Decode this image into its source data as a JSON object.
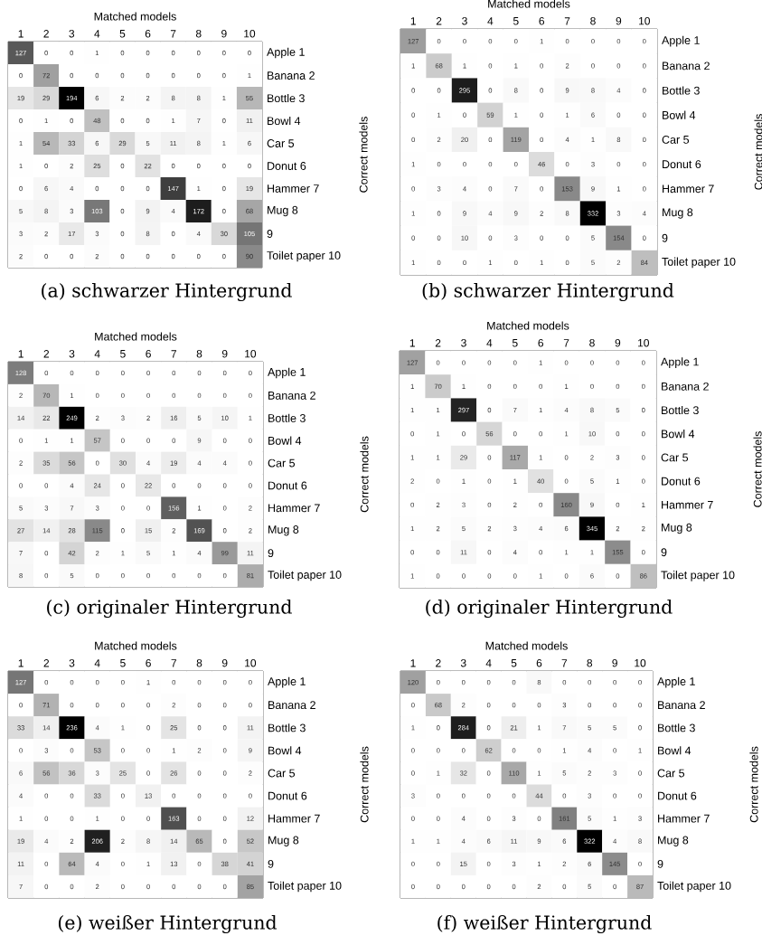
{
  "chart_data": [
    {
      "type": "heatmap",
      "xlabel": "Matched models",
      "ylabel": "Correct models",
      "categories": [
        "1",
        "2",
        "3",
        "4",
        "5",
        "6",
        "7",
        "8",
        "9",
        "10"
      ],
      "y_categories": [
        "Apple 1",
        "Banana 2",
        "Bottle 3",
        "Bowl 4",
        "Car 5",
        "Donut 6",
        "Hammer 7",
        "Mug 8",
        "9",
        "Toilet paper 10"
      ],
      "cells": [
        [
          127,
          0,
          0,
          1,
          0,
          0,
          0,
          0,
          0,
          0
        ],
        [
          0,
          72,
          0,
          0,
          0,
          0,
          0,
          0,
          0,
          1
        ],
        [
          19,
          29,
          194,
          6,
          2,
          2,
          8,
          8,
          1,
          55
        ],
        [
          0,
          1,
          0,
          48,
          0,
          0,
          1,
          7,
          0,
          11
        ],
        [
          1,
          54,
          33,
          6,
          29,
          5,
          11,
          8,
          1,
          6
        ],
        [
          1,
          0,
          2,
          25,
          0,
          22,
          0,
          0,
          0,
          0
        ],
        [
          0,
          6,
          4,
          0,
          0,
          0,
          147,
          1,
          0,
          19
        ],
        [
          5,
          8,
          3,
          103,
          0,
          9,
          4,
          172,
          0,
          68
        ],
        [
          3,
          2,
          17,
          3,
          0,
          8,
          0,
          4,
          30,
          105
        ],
        [
          2,
          0,
          0,
          2,
          0,
          0,
          0,
          0,
          0,
          90
        ]
      ],
      "data_labels": true,
      "annotations": [
        "(a) schwarzer Hintergrund"
      ]
    },
    {
      "type": "heatmap",
      "xlabel": "Matched models",
      "ylabel": "Correct models",
      "categories": [
        "1",
        "2",
        "3",
        "4",
        "5",
        "6",
        "7",
        "8",
        "9",
        "10"
      ],
      "y_categories": [
        "Apple 1",
        "Banana 2",
        "Bottle 3",
        "Bowl 4",
        "Car 5",
        "Donut 6",
        "Hammer 7",
        "Mug 8",
        "9",
        "Toilet paper 10"
      ],
      "cells": [
        [
          127,
          0,
          0,
          0,
          0,
          1,
          0,
          0,
          0,
          0
        ],
        [
          1,
          68,
          1,
          0,
          1,
          0,
          2,
          0,
          0,
          0
        ],
        [
          0,
          0,
          295,
          0,
          8,
          0,
          9,
          8,
          4,
          0
        ],
        [
          0,
          1,
          0,
          59,
          1,
          0,
          1,
          6,
          0,
          0
        ],
        [
          0,
          2,
          20,
          0,
          119,
          0,
          4,
          1,
          8,
          0
        ],
        [
          1,
          0,
          0,
          0,
          0,
          46,
          0,
          3,
          0,
          0
        ],
        [
          0,
          3,
          4,
          0,
          7,
          0,
          153,
          9,
          1,
          0
        ],
        [
          1,
          0,
          9,
          4,
          9,
          2,
          8,
          332,
          3,
          4
        ],
        [
          0,
          0,
          10,
          0,
          3,
          0,
          0,
          5,
          154,
          0
        ],
        [
          1,
          0,
          0,
          1,
          0,
          1,
          0,
          5,
          2,
          84
        ]
      ],
      "data_labels": true,
      "annotations": [
        "(b) schwarzer Hintergrund"
      ]
    },
    {
      "type": "heatmap",
      "xlabel": "Matched models",
      "ylabel": "Correct models",
      "categories": [
        "1",
        "2",
        "3",
        "4",
        "5",
        "6",
        "7",
        "8",
        "9",
        "10"
      ],
      "y_categories": [
        "Apple 1",
        "Banana 2",
        "Bottle 3",
        "Bowl 4",
        "Car 5",
        "Donut 6",
        "Hammer 7",
        "Mug 8",
        "9",
        "Toilet paper 10"
      ],
      "cells": [
        [
          128,
          0,
          0,
          0,
          0,
          0,
          0,
          0,
          0,
          0
        ],
        [
          2,
          70,
          1,
          0,
          0,
          0,
          0,
          0,
          0,
          0
        ],
        [
          14,
          22,
          249,
          2,
          3,
          2,
          16,
          5,
          10,
          1
        ],
        [
          0,
          1,
          1,
          57,
          0,
          0,
          0,
          9,
          0,
          0
        ],
        [
          2,
          35,
          56,
          0,
          30,
          4,
          19,
          4,
          4,
          0
        ],
        [
          0,
          0,
          4,
          24,
          0,
          22,
          0,
          0,
          0,
          0
        ],
        [
          5,
          3,
          7,
          3,
          0,
          0,
          156,
          1,
          0,
          2
        ],
        [
          27,
          14,
          28,
          115,
          0,
          15,
          2,
          169,
          0,
          2
        ],
        [
          7,
          0,
          42,
          2,
          1,
          5,
          1,
          4,
          99,
          11
        ],
        [
          8,
          0,
          5,
          0,
          0,
          0,
          0,
          0,
          0,
          81
        ]
      ],
      "data_labels": true,
      "annotations": [
        "(c) originaler Hintergrund"
      ]
    },
    {
      "type": "heatmap",
      "xlabel": "Matched models",
      "ylabel": "Correct models",
      "categories": [
        "1",
        "2",
        "3",
        "4",
        "5",
        "6",
        "7",
        "8",
        "9",
        "10"
      ],
      "y_categories": [
        "Apple 1",
        "Banana 2",
        "Bottle 3",
        "Bowl 4",
        "Car 5",
        "Donut 6",
        "Hammer 7",
        "Mug 8",
        "9",
        "Toilet paper 10"
      ],
      "cells": [
        [
          127,
          0,
          0,
          0,
          0,
          1,
          0,
          0,
          0,
          0
        ],
        [
          1,
          70,
          1,
          0,
          0,
          0,
          1,
          0,
          0,
          0
        ],
        [
          1,
          1,
          297,
          0,
          7,
          1,
          4,
          8,
          5,
          0
        ],
        [
          0,
          1,
          0,
          56,
          0,
          0,
          1,
          10,
          0,
          0
        ],
        [
          1,
          1,
          29,
          0,
          117,
          1,
          0,
          2,
          3,
          0
        ],
        [
          2,
          0,
          1,
          0,
          1,
          40,
          0,
          5,
          1,
          0
        ],
        [
          0,
          2,
          3,
          0,
          2,
          0,
          160,
          9,
          0,
          1
        ],
        [
          1,
          2,
          5,
          2,
          3,
          4,
          6,
          345,
          2,
          2
        ],
        [
          0,
          0,
          11,
          0,
          4,
          0,
          1,
          1,
          155,
          0
        ],
        [
          1,
          0,
          0,
          0,
          0,
          1,
          0,
          6,
          0,
          86
        ]
      ],
      "data_labels": true,
      "annotations": [
        "(d) originaler Hintergrund"
      ]
    },
    {
      "type": "heatmap",
      "xlabel": "Matched models",
      "ylabel": "Correct models",
      "categories": [
        "1",
        "2",
        "3",
        "4",
        "5",
        "6",
        "7",
        "8",
        "9",
        "10"
      ],
      "y_categories": [
        "Apple 1",
        "Banana 2",
        "Bottle 3",
        "Bowl 4",
        "Car 5",
        "Donut 6",
        "Hammer 7",
        "Mug 8",
        "9",
        "Toilet paper 10"
      ],
      "cells": [
        [
          127,
          0,
          0,
          0,
          0,
          1,
          0,
          0,
          0,
          0
        ],
        [
          0,
          71,
          0,
          0,
          0,
          0,
          2,
          0,
          0,
          0
        ],
        [
          33,
          14,
          236,
          4,
          1,
          0,
          25,
          0,
          0,
          11
        ],
        [
          0,
          3,
          0,
          53,
          0,
          0,
          1,
          2,
          0,
          9
        ],
        [
          6,
          56,
          36,
          3,
          25,
          0,
          26,
          0,
          0,
          2
        ],
        [
          4,
          0,
          0,
          33,
          0,
          13,
          0,
          0,
          0,
          0
        ],
        [
          1,
          0,
          0,
          1,
          0,
          0,
          163,
          0,
          0,
          12
        ],
        [
          19,
          4,
          2,
          206,
          2,
          8,
          14,
          65,
          0,
          52
        ],
        [
          11,
          0,
          64,
          4,
          0,
          1,
          13,
          0,
          38,
          41
        ],
        [
          7,
          0,
          0,
          2,
          0,
          0,
          0,
          0,
          0,
          85
        ]
      ],
      "data_labels": true,
      "annotations": [
        "(e) weißer Hintergrund"
      ]
    },
    {
      "type": "heatmap",
      "xlabel": "Matched models",
      "ylabel": "Correct models",
      "categories": [
        "1",
        "2",
        "3",
        "4",
        "5",
        "6",
        "7",
        "8",
        "9",
        "10"
      ],
      "y_categories": [
        "Apple 1",
        "Banana 2",
        "Bottle 3",
        "Bowl 4",
        "Car 5",
        "Donut 6",
        "Hammer 7",
        "Mug 8",
        "9",
        "Toilet paper 10"
      ],
      "cells": [
        [
          120,
          0,
          0,
          0,
          0,
          8,
          0,
          0,
          0,
          0
        ],
        [
          0,
          68,
          2,
          0,
          0,
          0,
          3,
          0,
          0,
          0
        ],
        [
          1,
          0,
          284,
          0,
          21,
          1,
          7,
          5,
          5,
          0
        ],
        [
          0,
          0,
          0,
          62,
          0,
          0,
          1,
          4,
          0,
          1
        ],
        [
          0,
          1,
          32,
          0,
          110,
          1,
          5,
          2,
          3,
          0
        ],
        [
          3,
          0,
          0,
          0,
          0,
          44,
          0,
          3,
          0,
          0
        ],
        [
          0,
          0,
          4,
          0,
          3,
          0,
          161,
          5,
          1,
          3
        ],
        [
          1,
          1,
          4,
          6,
          11,
          9,
          6,
          322,
          4,
          8
        ],
        [
          0,
          0,
          15,
          0,
          3,
          1,
          2,
          6,
          145,
          0
        ],
        [
          0,
          0,
          0,
          0,
          0,
          2,
          0,
          5,
          0,
          87
        ]
      ],
      "data_labels": true,
      "annotations": [
        "(f) weißer Hintergrund"
      ]
    }
  ]
}
